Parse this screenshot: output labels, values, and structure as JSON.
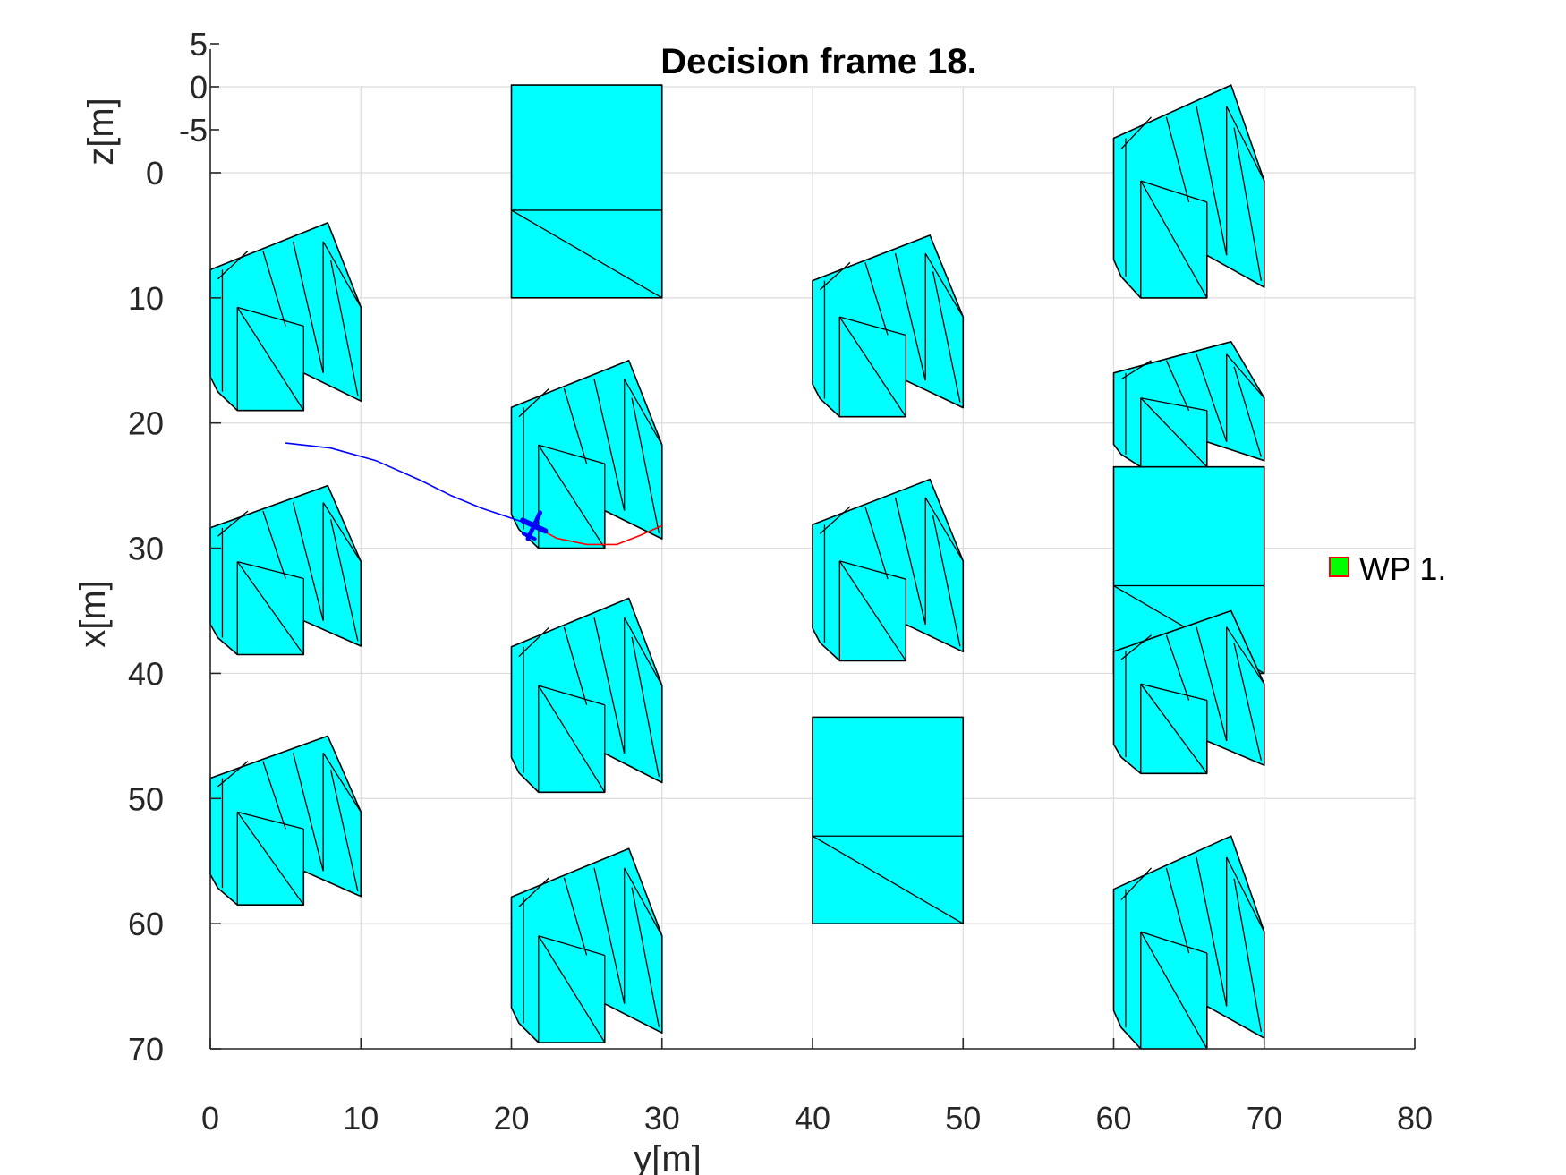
{
  "chart_data": {
    "type": "scatter",
    "title": "Decision frame 18.",
    "xlabel": "y[m]",
    "ylabel": "x[m]",
    "zlabel": "z[m]",
    "xlim": [
      0,
      80
    ],
    "ylim": [
      0,
      70
    ],
    "y_reversed": true,
    "x_ticks": [
      0,
      10,
      20,
      30,
      40,
      50,
      60,
      70,
      80
    ],
    "y_ticks": [
      0,
      10,
      20,
      30,
      40,
      50,
      60,
      70
    ],
    "z_ticks": [
      5,
      0,
      -5
    ],
    "grid": true,
    "legend": {
      "placement": "right",
      "entries": [
        {
          "label": "WP 1.",
          "color": "#00ff00",
          "edge": "#ff0000"
        }
      ]
    },
    "building_color": "#00ffff",
    "series": [
      {
        "role": "flown-path",
        "color": "#0000ff",
        "points": [
          [
            5,
            21.6
          ],
          [
            8,
            22.0
          ],
          [
            11,
            23.0
          ],
          [
            14,
            24.6
          ],
          [
            16,
            25.8
          ],
          [
            18,
            26.8
          ],
          [
            20,
            27.6
          ],
          [
            21.5,
            28.2
          ]
        ]
      },
      {
        "role": "planned-path",
        "color": "#ff0000",
        "points": [
          [
            21.5,
            28.2
          ],
          [
            23,
            29.2
          ],
          [
            25,
            29.7
          ],
          [
            27,
            29.7
          ],
          [
            28.5,
            29.0
          ],
          [
            30,
            28.2
          ]
        ]
      }
    ],
    "aircraft": {
      "y": 21.5,
      "x": 28.2,
      "color": "#0000ff"
    },
    "waypoints": [
      {
        "label": "WP 1.",
        "y": 75,
        "x": 31.5
      }
    ],
    "buildings": [
      {
        "shape": "box",
        "y": [
          20,
          30
        ],
        "x": [
          -7,
          10
        ],
        "split": 3
      },
      {
        "shape": "box",
        "y": [
          40,
          50
        ],
        "x": [
          43.5,
          60
        ],
        "split": 53
      },
      {
        "shape": "box",
        "y": [
          60,
          70
        ],
        "x": [
          23.5,
          40
        ],
        "split": 33
      },
      {
        "shape": "block",
        "y": [
          0,
          10
        ],
        "x": [
          4,
          19
        ]
      },
      {
        "shape": "block",
        "y": [
          0,
          10
        ],
        "x": [
          25,
          38.5
        ]
      },
      {
        "shape": "block",
        "y": [
          0,
          10
        ],
        "x": [
          45,
          58.5
        ]
      },
      {
        "shape": "block",
        "y": [
          20,
          30
        ],
        "x": [
          15,
          30
        ]
      },
      {
        "shape": "block",
        "y": [
          20,
          30
        ],
        "x": [
          34,
          49.5
        ]
      },
      {
        "shape": "block",
        "y": [
          20,
          30
        ],
        "x": [
          54,
          69.5
        ]
      },
      {
        "shape": "block",
        "y": [
          40,
          50
        ],
        "x": [
          5,
          19.5
        ]
      },
      {
        "shape": "block",
        "y": [
          40,
          50
        ],
        "x": [
          24.5,
          39
        ]
      },
      {
        "shape": "block",
        "y": [
          60,
          70
        ],
        "x": [
          -7,
          10
        ]
      },
      {
        "shape": "block",
        "y": [
          60,
          70
        ],
        "x": [
          13.5,
          23.5
        ]
      },
      {
        "shape": "block",
        "y": [
          60,
          70
        ],
        "x": [
          35,
          48
        ]
      },
      {
        "shape": "block",
        "y": [
          60,
          70
        ],
        "x": [
          53,
          70
        ]
      }
    ]
  }
}
